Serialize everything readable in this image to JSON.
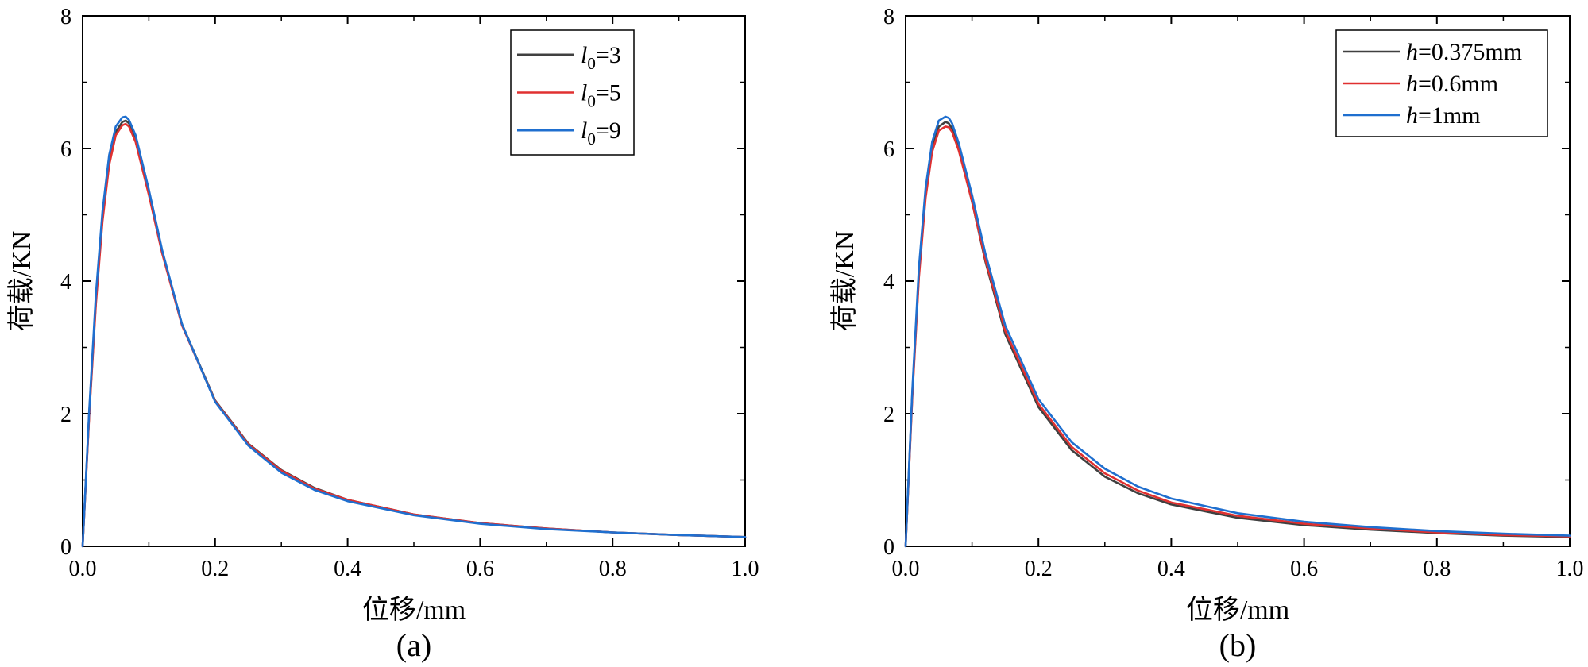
{
  "chart_data": [
    {
      "type": "line",
      "panel_label": "(a)",
      "xlabel": "位移/mm",
      "ylabel": "荷载/KN",
      "xlim": [
        0.0,
        1.0
      ],
      "ylim": [
        0,
        8
      ],
      "xticks": [
        "0.0",
        "0.2",
        "0.4",
        "0.6",
        "0.8",
        "1.0"
      ],
      "yticks": [
        "0",
        "2",
        "4",
        "6",
        "8"
      ],
      "grid": false,
      "legend_position": "top-right",
      "series": [
        {
          "name": "l0=3",
          "legend": {
            "var": "l",
            "sub": "0",
            "rest": "=3"
          },
          "color": "#404040",
          "x": [
            0.0,
            0.01,
            0.02,
            0.03,
            0.04,
            0.05,
            0.06,
            0.065,
            0.07,
            0.08,
            0.1,
            0.12,
            0.15,
            0.2,
            0.25,
            0.3,
            0.35,
            0.4,
            0.5,
            0.6,
            0.7,
            0.8,
            0.9,
            1.0
          ],
          "values": [
            0.0,
            2.0,
            3.7,
            4.95,
            5.8,
            6.25,
            6.4,
            6.42,
            6.38,
            6.15,
            5.35,
            4.45,
            3.35,
            2.2,
            1.55,
            1.15,
            0.88,
            0.7,
            0.48,
            0.35,
            0.27,
            0.21,
            0.17,
            0.14
          ]
        },
        {
          "name": "l0=5",
          "legend": {
            "var": "l",
            "sub": "0",
            "rest": "=5"
          },
          "color": "#e03030",
          "x": [
            0.0,
            0.01,
            0.02,
            0.03,
            0.04,
            0.05,
            0.06,
            0.065,
            0.07,
            0.08,
            0.1,
            0.12,
            0.15,
            0.2,
            0.25,
            0.3,
            0.35,
            0.4,
            0.5,
            0.6,
            0.7,
            0.8,
            0.9,
            1.0
          ],
          "values": [
            0.0,
            1.97,
            3.65,
            4.9,
            5.75,
            6.2,
            6.35,
            6.37,
            6.33,
            6.1,
            5.3,
            4.42,
            3.33,
            2.19,
            1.54,
            1.14,
            0.87,
            0.7,
            0.48,
            0.35,
            0.27,
            0.21,
            0.17,
            0.14
          ]
        },
        {
          "name": "l0=9",
          "legend": {
            "var": "l",
            "sub": "0",
            "rest": "=9"
          },
          "color": "#1f6fcf",
          "x": [
            0.0,
            0.01,
            0.02,
            0.03,
            0.04,
            0.05,
            0.06,
            0.065,
            0.07,
            0.08,
            0.1,
            0.12,
            0.15,
            0.2,
            0.25,
            0.3,
            0.35,
            0.4,
            0.5,
            0.6,
            0.7,
            0.8,
            0.9,
            1.0
          ],
          "values": [
            0.0,
            2.05,
            3.8,
            5.05,
            5.9,
            6.33,
            6.47,
            6.48,
            6.43,
            6.2,
            5.38,
            4.47,
            3.35,
            2.18,
            1.52,
            1.11,
            0.85,
            0.68,
            0.47,
            0.34,
            0.26,
            0.21,
            0.17,
            0.14
          ]
        }
      ]
    },
    {
      "type": "line",
      "panel_label": "(b)",
      "xlabel": "位移/mm",
      "ylabel": "荷载/KN",
      "xlim": [
        0.0,
        1.0
      ],
      "ylim": [
        0,
        8
      ],
      "xticks": [
        "0.0",
        "0.2",
        "0.4",
        "0.6",
        "0.8",
        "1.0"
      ],
      "yticks": [
        "0",
        "2",
        "4",
        "6",
        "8"
      ],
      "grid": false,
      "legend_position": "top-right",
      "series": [
        {
          "name": "h=0.375mm",
          "legend": {
            "var": "h",
            "sub": "",
            "rest": "=0.375mm"
          },
          "color": "#404040",
          "x": [
            0.0,
            0.01,
            0.02,
            0.03,
            0.04,
            0.05,
            0.06,
            0.065,
            0.07,
            0.08,
            0.1,
            0.12,
            0.15,
            0.2,
            0.25,
            0.3,
            0.35,
            0.4,
            0.5,
            0.6,
            0.7,
            0.8,
            0.9,
            1.0
          ],
          "values": [
            0.0,
            2.3,
            4.1,
            5.3,
            6.0,
            6.33,
            6.4,
            6.38,
            6.3,
            6.0,
            5.2,
            4.3,
            3.2,
            2.1,
            1.45,
            1.05,
            0.8,
            0.63,
            0.43,
            0.32,
            0.25,
            0.2,
            0.16,
            0.14
          ]
        },
        {
          "name": "h=0.6mm",
          "legend": {
            "var": "h",
            "sub": "",
            "rest": "=0.6mm"
          },
          "color": "#e03030",
          "x": [
            0.0,
            0.01,
            0.02,
            0.03,
            0.04,
            0.05,
            0.06,
            0.065,
            0.07,
            0.08,
            0.1,
            0.12,
            0.15,
            0.2,
            0.25,
            0.3,
            0.35,
            0.4,
            0.5,
            0.6,
            0.7,
            0.8,
            0.9,
            1.0
          ],
          "values": [
            0.0,
            2.25,
            4.05,
            5.25,
            5.95,
            6.27,
            6.33,
            6.32,
            6.25,
            5.97,
            5.2,
            4.33,
            3.25,
            2.15,
            1.5,
            1.1,
            0.84,
            0.66,
            0.46,
            0.34,
            0.27,
            0.21,
            0.17,
            0.15
          ]
        },
        {
          "name": "h=1mm",
          "legend": {
            "var": "h",
            "sub": "",
            "rest": "=1mm"
          },
          "color": "#1f6fcf",
          "x": [
            0.0,
            0.01,
            0.02,
            0.03,
            0.04,
            0.05,
            0.06,
            0.065,
            0.07,
            0.08,
            0.1,
            0.12,
            0.15,
            0.2,
            0.25,
            0.3,
            0.35,
            0.4,
            0.5,
            0.6,
            0.7,
            0.8,
            0.9,
            1.0
          ],
          "values": [
            0.0,
            2.35,
            4.2,
            5.4,
            6.1,
            6.42,
            6.48,
            6.46,
            6.38,
            6.08,
            5.3,
            4.42,
            3.33,
            2.22,
            1.57,
            1.17,
            0.9,
            0.72,
            0.5,
            0.37,
            0.29,
            0.23,
            0.19,
            0.16
          ]
        }
      ]
    }
  ]
}
